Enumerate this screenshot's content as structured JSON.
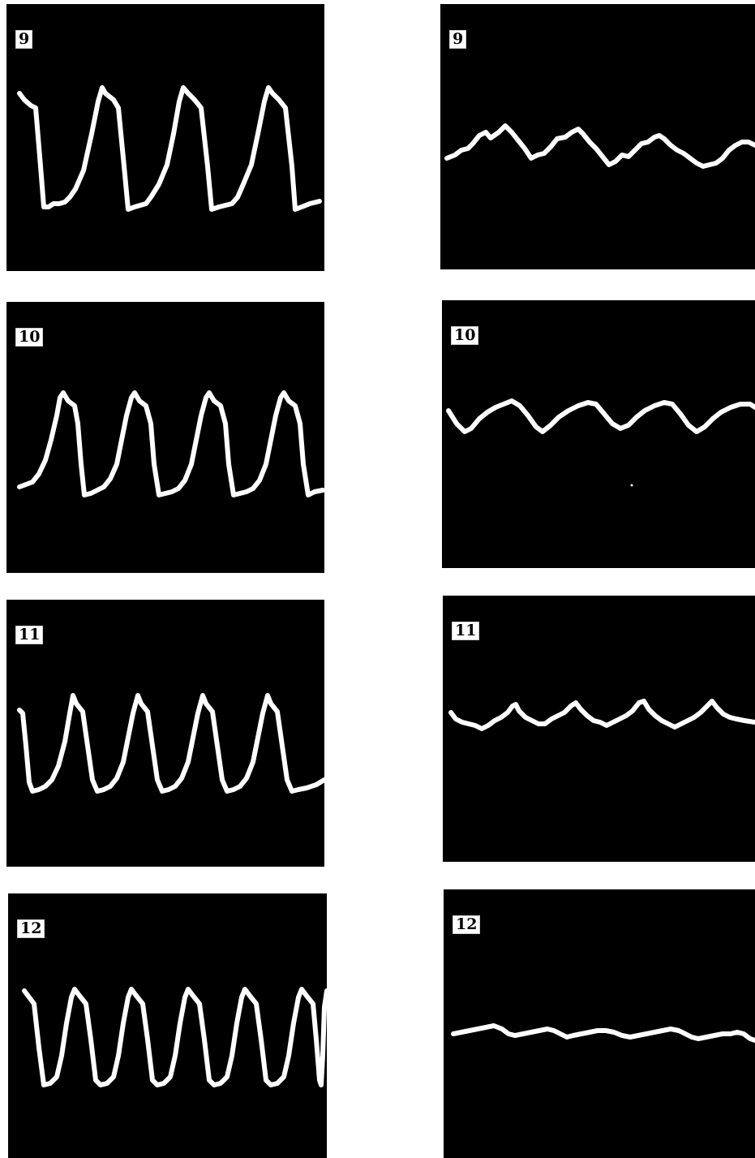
{
  "panels": [
    {
      "id": "l9",
      "column": "left",
      "label": "9"
    },
    {
      "id": "r9",
      "column": "right",
      "label": "9"
    },
    {
      "id": "l10",
      "column": "left",
      "label": "10"
    },
    {
      "id": "r10",
      "column": "right",
      "label": "10"
    },
    {
      "id": "l11",
      "column": "left",
      "label": "11"
    },
    {
      "id": "r11",
      "column": "right",
      "label": "11"
    },
    {
      "id": "l12",
      "column": "left",
      "label": "12"
    },
    {
      "id": "r12",
      "column": "right",
      "label": "12"
    }
  ],
  "colors": {
    "background": "#ffffff",
    "panel": "#000000",
    "trace": "#ffffff",
    "label_box": "#ffffff",
    "label_text": "#000000"
  }
}
